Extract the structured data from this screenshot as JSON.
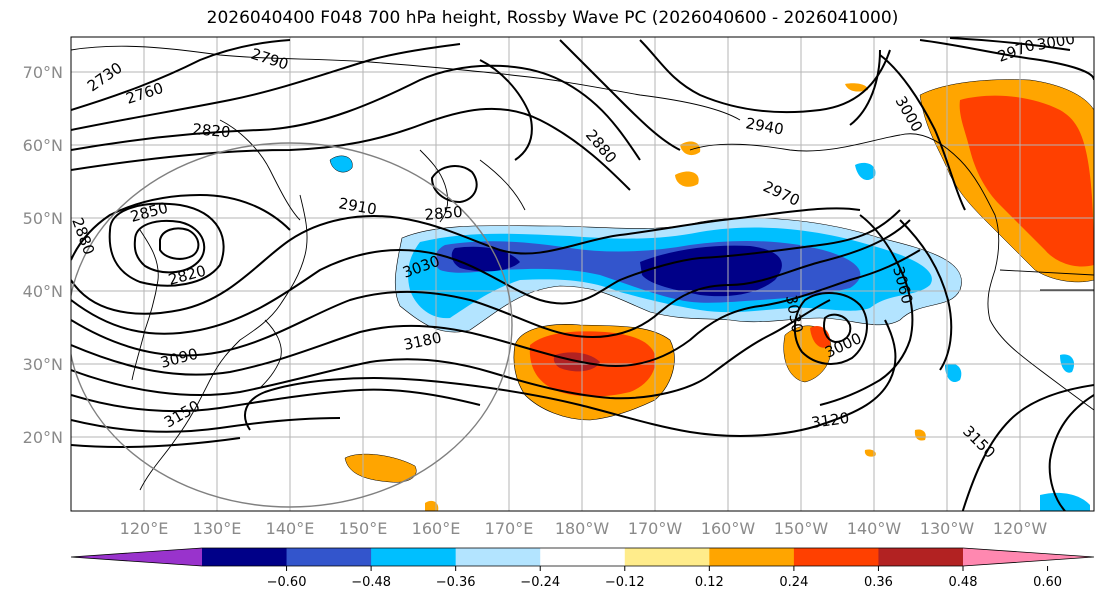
{
  "title": "2026040400 F048 700 hPa height, Rossby Wave PC (2026040600 - 2026041000)",
  "lat_labels": [
    "70°N",
    "60°N",
    "50°N",
    "40°N",
    "30°N",
    "20°N"
  ],
  "lon_labels": [
    "120°E",
    "130°E",
    "140°E",
    "150°E",
    "160°E",
    "170°E",
    "180°W",
    "170°W",
    "160°W",
    "150°W",
    "140°W",
    "130°W",
    "120°W"
  ],
  "contour_labels": [
    {
      "text": "2730"
    },
    {
      "text": "2760"
    },
    {
      "text": "2790"
    },
    {
      "text": "2820"
    },
    {
      "text": "2880"
    },
    {
      "text": "2940"
    },
    {
      "text": "2970"
    },
    {
      "text": "2970"
    },
    {
      "text": "2910"
    },
    {
      "text": "3000"
    },
    {
      "text": "2850"
    },
    {
      "text": "2850"
    },
    {
      "text": "2880"
    },
    {
      "text": "2820"
    },
    {
      "text": "3030"
    },
    {
      "text": "3090"
    },
    {
      "text": "3180"
    },
    {
      "text": "3150"
    },
    {
      "text": "3030"
    },
    {
      "text": "3000"
    },
    {
      "text": "3060"
    },
    {
      "text": "3120"
    },
    {
      "text": "3150"
    },
    {
      "text": "3000"
    }
  ],
  "colorbar": {
    "colors": [
      "#9933cc",
      "#000088",
      "#3355cc",
      "#00bfff",
      "#b3e4ff",
      "#ffffff",
      "#ffec8b",
      "#ffa500",
      "#ff4000",
      "#b22222",
      "#ff88b0"
    ],
    "ticks": [
      "−0.60",
      "−0.48",
      "−0.36",
      "−0.24",
      "−0.12",
      "0.12",
      "0.24",
      "0.36",
      "0.48",
      "0.60"
    ]
  }
}
